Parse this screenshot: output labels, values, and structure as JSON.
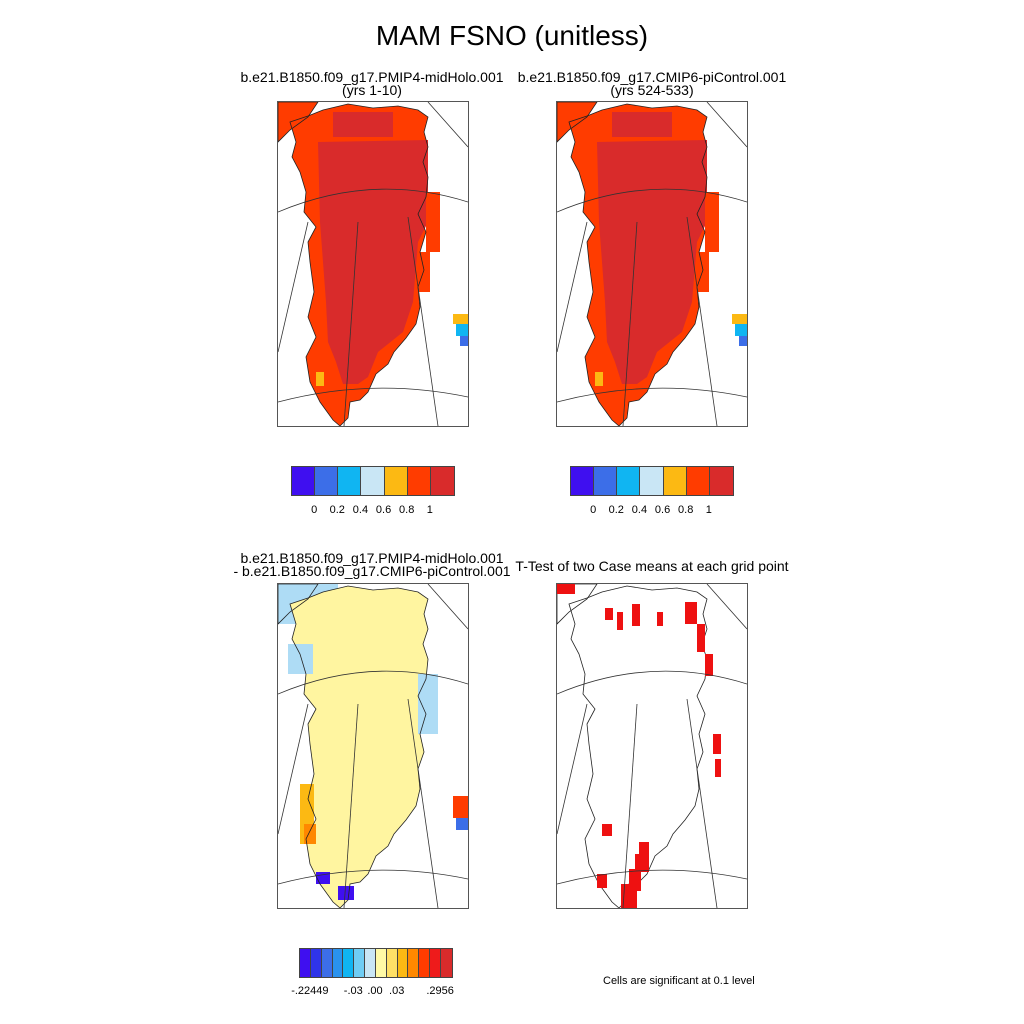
{
  "title": "MAM FSNO (unitless)",
  "panels": {
    "p1": {
      "line1": "b.e21.B1850.f09_g17.PMIP4-midHolo.001",
      "line2": "(yrs 1-10)"
    },
    "p2": {
      "line1": "b.e21.B1850.f09_g17.CMIP6-piControl.001",
      "line2": "(yrs 524-533)"
    },
    "p3": {
      "line1": "b.e21.B1850.f09_g17.PMIP4-midHolo.001",
      "line2": "- b.e21.B1850.f09_g17.CMIP6-piControl.001"
    },
    "p4": {
      "line1": "T-Test of two Case means at each grid point"
    }
  },
  "colorbar_top": {
    "colors": [
      "#3f0ff0",
      "#3c6ee8",
      "#10b5f2",
      "#c9e6f5",
      "#fcb913",
      "#ff3c00",
      "#d92b2b"
    ],
    "labels": [
      "0",
      "0.2",
      "0.4",
      "0.6",
      "0.8",
      "1"
    ]
  },
  "colorbar_diff": {
    "colors": [
      "#3f0ff0",
      "#2f34ea",
      "#3c6ee8",
      "#2a92ee",
      "#10b5f2",
      "#6fcdf4",
      "#c9e6f5",
      "#fffaa6",
      "#ffe066",
      "#fcb913",
      "#ff8800",
      "#ff3c00",
      "#ee1b1b",
      "#d92b2b"
    ],
    "labels": [
      "-.22449",
      "-.03",
      ".00",
      ".03",
      ".2956"
    ]
  },
  "significance_note": "Cells are significant at 0.1 level",
  "map_colors": {
    "high": "#d92b2b",
    "mid": "#ff3c00",
    "near_zero_pos": "#fff5a0",
    "small_neg": "#aedcf5",
    "significant": "#ee1111"
  }
}
